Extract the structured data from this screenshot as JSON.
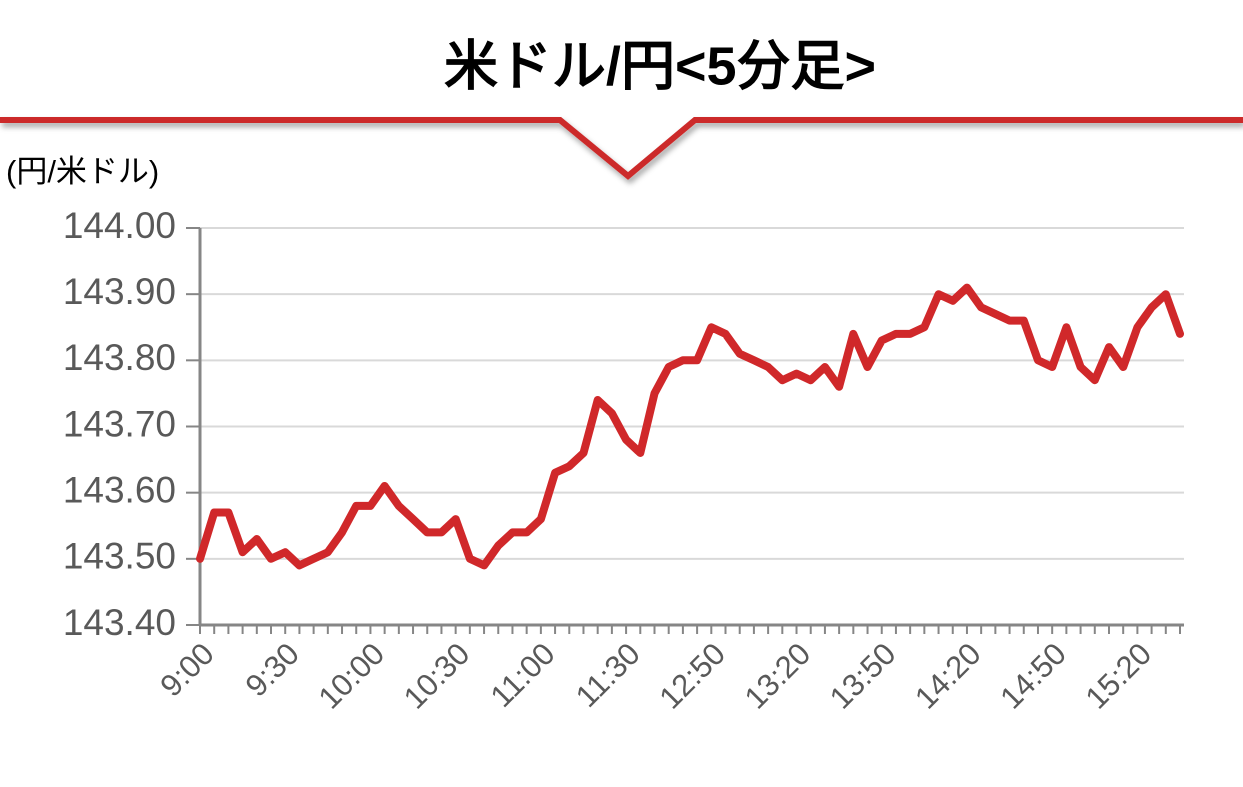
{
  "chart_data": {
    "type": "line",
    "title": "米ドル/円<5分足>",
    "y_label": "(円/米ドル)",
    "categories": [
      "9:00",
      null,
      null,
      null,
      null,
      null,
      "9:30",
      null,
      null,
      null,
      null,
      null,
      "10:00",
      null,
      null,
      null,
      null,
      null,
      "10:30",
      null,
      null,
      null,
      null,
      null,
      "11:00",
      null,
      null,
      null,
      null,
      null,
      "11:30",
      null,
      null,
      null,
      null,
      null,
      "12:50",
      null,
      null,
      null,
      null,
      null,
      "13:20",
      null,
      null,
      null,
      null,
      null,
      "13:50",
      null,
      null,
      null,
      null,
      null,
      "14:20",
      null,
      null,
      null,
      null,
      null,
      "14:50",
      null,
      null,
      null,
      null,
      null,
      "15:20",
      null,
      null,
      null
    ],
    "series": [
      {
        "color": "#d0282a",
        "values": [
          143.5,
          143.57,
          143.57,
          143.51,
          143.53,
          143.5,
          143.51,
          143.49,
          143.5,
          143.51,
          143.54,
          143.58,
          143.58,
          143.61,
          143.58,
          143.56,
          143.54,
          143.54,
          143.56,
          143.5,
          143.49,
          143.52,
          143.54,
          143.54,
          143.56,
          143.63,
          143.64,
          143.66,
          143.74,
          143.72,
          143.68,
          143.66,
          143.75,
          143.79,
          143.8,
          143.8,
          143.85,
          143.84,
          143.81,
          143.8,
          143.79,
          143.77,
          143.78,
          143.77,
          143.79,
          143.76,
          143.84,
          143.79,
          143.83,
          143.84,
          143.84,
          143.85,
          143.9,
          143.89,
          143.91,
          143.88,
          143.87,
          143.86,
          143.86,
          143.8,
          143.79,
          143.85,
          143.79,
          143.77,
          143.82,
          143.79,
          143.85,
          143.88,
          143.9,
          143.84
        ]
      }
    ],
    "ylim": [
      143.4,
      144.0
    ],
    "yticks": [
      {
        "value": 143.4,
        "label": "143.40"
      },
      {
        "value": 143.5,
        "label": "143.50"
      },
      {
        "value": 143.6,
        "label": "143.60"
      },
      {
        "value": 143.7,
        "label": "143.70"
      },
      {
        "value": 143.8,
        "label": "143.80"
      },
      {
        "value": 143.9,
        "label": "143.90"
      },
      {
        "value": 144.0,
        "label": "144.00"
      }
    ],
    "grid": true
  }
}
